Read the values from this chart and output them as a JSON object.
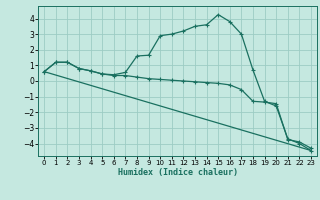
{
  "title": "",
  "xlabel": "Humidex (Indice chaleur)",
  "bg_color": "#c5e8e0",
  "grid_color": "#9dccc4",
  "line_color": "#1a7060",
  "xlim": [
    -0.5,
    23.5
  ],
  "ylim": [
    -4.8,
    4.8
  ],
  "yticks": [
    -4,
    -3,
    -2,
    -1,
    0,
    1,
    2,
    3,
    4
  ],
  "xticks": [
    0,
    1,
    2,
    3,
    4,
    5,
    6,
    7,
    8,
    9,
    10,
    11,
    12,
    13,
    14,
    15,
    16,
    17,
    18,
    19,
    20,
    21,
    22,
    23
  ],
  "line1_x": [
    0,
    1,
    2,
    3,
    4,
    5,
    6,
    7,
    8,
    9,
    10,
    11,
    12,
    13,
    14,
    15,
    16,
    17,
    18,
    19,
    20,
    21,
    22,
    23
  ],
  "line1_y": [
    0.6,
    1.2,
    1.2,
    0.8,
    0.65,
    0.45,
    0.4,
    0.55,
    1.6,
    1.65,
    2.9,
    3.0,
    3.2,
    3.5,
    3.6,
    4.25,
    3.8,
    3.0,
    0.7,
    -1.3,
    -1.6,
    -3.7,
    -4.0,
    -4.45
  ],
  "line2_x": [
    0,
    1,
    2,
    3,
    4,
    5,
    6,
    7,
    8,
    9,
    10,
    11,
    12,
    13,
    14,
    15,
    16,
    17,
    18,
    19,
    20,
    21,
    22,
    23
  ],
  "line2_y": [
    0.6,
    1.2,
    1.2,
    0.8,
    0.65,
    0.45,
    0.35,
    0.35,
    0.25,
    0.15,
    0.1,
    0.05,
    0.0,
    -0.05,
    -0.1,
    -0.15,
    -0.25,
    -0.55,
    -1.3,
    -1.35,
    -1.45,
    -3.75,
    -3.9,
    -4.3
  ],
  "line3_x": [
    0,
    23
  ],
  "line3_y": [
    0.6,
    -4.45
  ]
}
